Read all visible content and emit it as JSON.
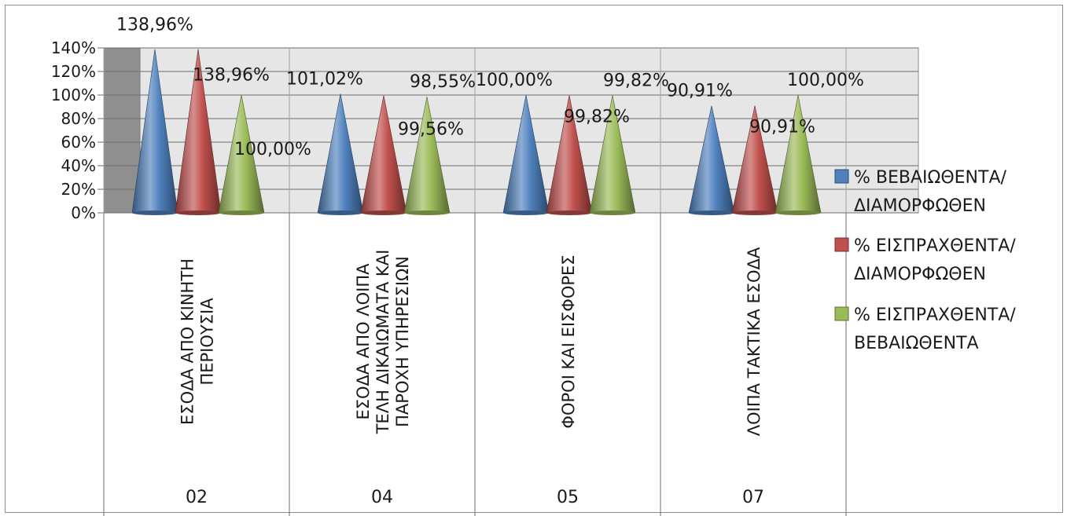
{
  "chart_data": {
    "type": "bar",
    "style": "cone",
    "y_ticks": [
      "0%",
      "20%",
      "40%",
      "60%",
      "80%",
      "100%",
      "120%",
      "140%"
    ],
    "ylim": [
      0,
      140
    ],
    "grid": true,
    "legend_position": "right",
    "categories": [
      {
        "code": "02",
        "name_lines": [
          "ΕΣΟΔΑ ΑΠΟ ΚΙΝΗΤΗ",
          "ΠΕΡΙΟΥΣΙΑ"
        ]
      },
      {
        "code": "04",
        "name_lines": [
          "ΕΣΟΔΑ ΑΠΟ ΛΟΙΠΑ",
          "ΤΕΛΗ ΔΙΚΑΙΩΜΑΤΑ ΚΑΙ",
          "ΠΑΡΟΧΗ ΥΠΗΡΕΣΙΩΝ"
        ]
      },
      {
        "code": "05",
        "name_lines": [
          "ΦΟΡΟΙ ΚΑΙ ΕΙΣΦΟΡΕΣ"
        ]
      },
      {
        "code": "07",
        "name_lines": [
          "ΛΟΙΠΑ ΤΑΚΤΙΚΑ ΕΣΟΔΑ"
        ]
      }
    ],
    "series": [
      {
        "legend_lines": [
          "% ΒΕΒΑΙΩΘΕΝΤΑ/",
          "ΔΙΑΜΟΡΦΩΘΕΝ"
        ],
        "color": "#4f81bd",
        "values": [
          138.96,
          101.02,
          100.0,
          90.91
        ],
        "labels": [
          "138,96%",
          "101,02%",
          "100,00%",
          "90,91%"
        ]
      },
      {
        "legend_lines": [
          "% ΕΙΣΠΡΑΧΘΕΝΤΑ/",
          "ΔΙΑΜΟΡΦΩΘΕΝ"
        ],
        "color": "#c0504d",
        "values": [
          138.96,
          99.56,
          99.82,
          90.91
        ],
        "labels": [
          "138,96%",
          "99,56%",
          "99,82%",
          "90,91%"
        ]
      },
      {
        "legend_lines": [
          "% ΕΙΣΠΡΑΧΘΕΝΤΑ/",
          "ΒΕΒΑΙΩΘΕΝΤΑ"
        ],
        "color": "#9bbb59",
        "values": [
          100.0,
          98.55,
          99.82,
          100.0
        ],
        "labels": [
          "100,00%",
          "98,55%",
          "99,82%",
          "100,00%"
        ]
      }
    ]
  }
}
